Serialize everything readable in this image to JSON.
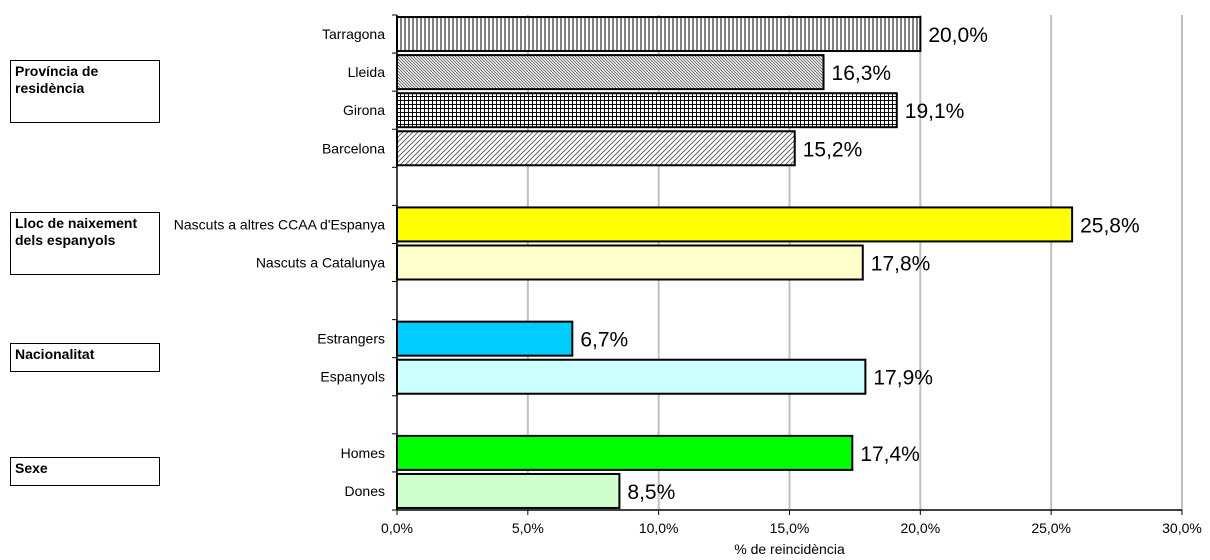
{
  "chart_data": {
    "type": "bar",
    "orientation": "horizontal",
    "xlabel": "% de reincidència",
    "xlim": [
      0,
      30
    ],
    "xticks": [
      "0,0%",
      "5,0%",
      "10,0%",
      "15,0%",
      "20,0%",
      "25,0%",
      "30,0%"
    ],
    "grid": true,
    "groups": [
      {
        "label": "Província de residència",
        "items": [
          {
            "category": "Tarragona",
            "value": 20.0,
            "label": "20,0%",
            "fill": "#ffffff",
            "pattern": "vertical-lines"
          },
          {
            "category": "Lleida",
            "value": 16.3,
            "label": "16,3%",
            "fill": "#ffffff",
            "pattern": "fine-diagonal"
          },
          {
            "category": "Girona",
            "value": 19.1,
            "label": "19,1%",
            "fill": "#ffffff",
            "pattern": "grid"
          },
          {
            "category": "Barcelona",
            "value": 15.2,
            "label": "15,2%",
            "fill": "#ffffff",
            "pattern": "diagonal"
          }
        ]
      },
      {
        "label": "Lloc de naixement dels espanyols",
        "items": [
          {
            "category": "Nascuts a altres CCAA d'Espanya",
            "value": 25.8,
            "label": "25,8%",
            "fill": "#ffff00",
            "pattern": "none"
          },
          {
            "category": "Nascuts a Catalunya",
            "value": 17.8,
            "label": "17,8%",
            "fill": "#ffffcc",
            "pattern": "none"
          }
        ]
      },
      {
        "label": "Nacionalitat",
        "items": [
          {
            "category": "Estrangers",
            "value": 6.7,
            "label": "6,7%",
            "fill": "#00ccff",
            "pattern": "none"
          },
          {
            "category": "Espanyols",
            "value": 17.9,
            "label": "17,9%",
            "fill": "#ccffff",
            "pattern": "none"
          }
        ]
      },
      {
        "label": "Sexe",
        "items": [
          {
            "category": "Homes",
            "value": 17.4,
            "label": "17,4%",
            "fill": "#00ff00",
            "pattern": "none"
          },
          {
            "category": "Dones",
            "value": 8.5,
            "label": "8,5%",
            "fill": "#ccffcc",
            "pattern": "none"
          }
        ]
      }
    ]
  }
}
